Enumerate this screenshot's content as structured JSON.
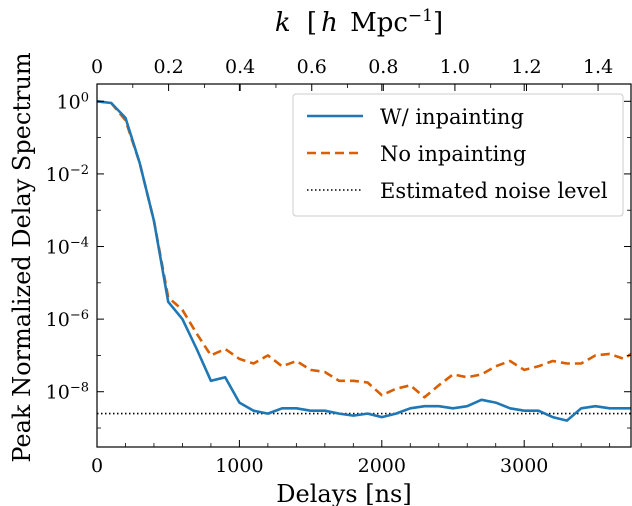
{
  "chart_data": {
    "type": "line",
    "xlabel": "Delays [ns]",
    "ylabel": "Peak Normalized Delay Spectrum",
    "top_axis_label": "k [h Mpc^-1]",
    "xlim": [
      0,
      3750
    ],
    "ylim": [
      3e-10,
      3.0
    ],
    "yscale": "log",
    "top_xlim": [
      0,
      1.492
    ],
    "x_ticks": [
      "0",
      "1000",
      "2000",
      "3000"
    ],
    "x_tick_values": [
      0,
      1000,
      2000,
      3000
    ],
    "top_ticks": [
      "0",
      "0.2",
      "0.4",
      "0.6",
      "0.8",
      "1.0",
      "1.2",
      "1.4"
    ],
    "top_tick_values": [
      0,
      0.2,
      0.4,
      0.6,
      0.8,
      1.0,
      1.2,
      1.4
    ],
    "y_tick_exponents": [
      "0",
      "-2",
      "-4",
      "-6",
      "-8"
    ],
    "y_tick_values": [
      1,
      0.01,
      0.0001,
      1e-06,
      1e-08
    ],
    "grid": false,
    "legend_position": "top-right",
    "x": [
      0,
      100,
      200,
      300,
      400,
      500,
      600,
      700,
      800,
      900,
      1000,
      1100,
      1200,
      1300,
      1400,
      1500,
      1600,
      1700,
      1800,
      1900,
      2000,
      2100,
      2200,
      2300,
      2400,
      2500,
      2600,
      2700,
      2800,
      2900,
      3000,
      3100,
      3200,
      3300,
      3400,
      3500,
      3600,
      3700,
      3750
    ],
    "series": [
      {
        "name": "W/ inpainting",
        "color": "#1f77b4",
        "style": "solid",
        "values": [
          1.0,
          0.9,
          0.35,
          0.02,
          0.0005,
          3e-06,
          1e-06,
          1.5e-07,
          2e-08,
          2.5e-08,
          5e-09,
          3e-09,
          2.5e-09,
          3.5e-09,
          3.5e-09,
          3e-09,
          3e-09,
          2.5e-09,
          2.2e-09,
          2.5e-09,
          2e-09,
          2.5e-09,
          3.5e-09,
          4e-09,
          4e-09,
          3.5e-09,
          4e-09,
          6e-09,
          5e-09,
          3.5e-09,
          3e-09,
          3e-09,
          2e-09,
          1.6e-09,
          3.5e-09,
          4e-09,
          3.5e-09,
          3.5e-09,
          3.5e-09
        ]
      },
      {
        "name": "No inpainting",
        "color": "#d95f02",
        "style": "dashed",
        "values": [
          1.0,
          0.9,
          0.3,
          0.02,
          0.0005,
          4e-06,
          1.8e-06,
          4e-07,
          1e-07,
          1.5e-07,
          8e-08,
          6e-08,
          1e-07,
          5e-08,
          7e-08,
          4e-08,
          3.5e-08,
          2e-08,
          2e-08,
          1.8e-08,
          8e-09,
          1.2e-08,
          1.5e-08,
          7e-09,
          1.5e-08,
          3e-08,
          2.5e-08,
          3e-08,
          5e-08,
          7e-08,
          4e-08,
          5e-08,
          7e-08,
          6e-08,
          6e-08,
          1e-07,
          1.1e-07,
          8e-08,
          1.1e-07
        ]
      },
      {
        "name": "Estimated noise level",
        "color": "#000000",
        "style": "dotted",
        "values": [
          2.5e-09,
          2.5e-09,
          2.5e-09,
          2.5e-09,
          2.5e-09,
          2.5e-09,
          2.5e-09,
          2.5e-09,
          2.5e-09,
          2.5e-09,
          2.5e-09,
          2.5e-09,
          2.5e-09,
          2.5e-09,
          2.5e-09,
          2.5e-09,
          2.5e-09,
          2.5e-09,
          2.5e-09,
          2.5e-09,
          2.5e-09,
          2.5e-09,
          2.5e-09,
          2.5e-09,
          2.5e-09,
          2.5e-09,
          2.5e-09,
          2.5e-09,
          2.5e-09,
          2.5e-09,
          2.5e-09,
          2.5e-09,
          2.5e-09,
          2.5e-09,
          2.5e-09,
          2.5e-09,
          2.5e-09,
          2.5e-09,
          2.5e-09
        ]
      }
    ]
  }
}
